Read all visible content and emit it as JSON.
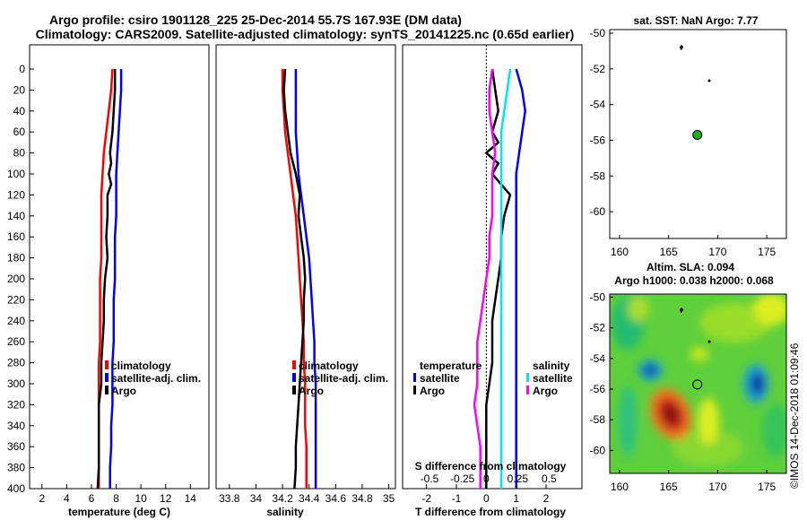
{
  "header": {
    "title_line1": "Argo profile: csiro 1901128_225 25-Dec-2014 55.7S 167.93E (DM data)",
    "title_line2": "Climatology: CARS2009. Satellite-adjusted climatology: synTS_20141225.nc (0.65d earlier)"
  },
  "watermark": "©IMOS 14-Dec-2018 01:09:46",
  "colors": {
    "climatology": "#ff0000",
    "satellite": "#0000ff",
    "argo": "#000000",
    "magenta": "#ff00ff",
    "cyan": "#00e5ee",
    "sst_dot": "#22aa22"
  },
  "chart_data": [
    {
      "type": "line",
      "id": "temperature",
      "xlabel": "temperature (deg C)",
      "xlim": [
        1,
        15.5
      ],
      "ylim": [
        400,
        0
      ],
      "xticks": [
        2,
        4,
        6,
        8,
        10,
        12,
        14
      ],
      "yticks": [
        0,
        20,
        40,
        60,
        80,
        100,
        120,
        140,
        160,
        180,
        200,
        220,
        240,
        260,
        280,
        300,
        320,
        340,
        360,
        380,
        400
      ],
      "series": [
        {
          "name": "climatology",
          "color": "#ff0000",
          "points": [
            [
              7.7,
              0
            ],
            [
              7.6,
              20
            ],
            [
              7.4,
              40
            ],
            [
              7.2,
              60
            ],
            [
              7.0,
              80
            ],
            [
              6.9,
              100
            ],
            [
              6.8,
              120
            ],
            [
              6.8,
              140
            ],
            [
              6.8,
              160
            ],
            [
              6.8,
              180
            ],
            [
              6.7,
              200
            ],
            [
              6.7,
              220
            ],
            [
              6.7,
              240
            ],
            [
              6.7,
              260
            ],
            [
              6.6,
              280
            ],
            [
              6.6,
              300
            ],
            [
              6.6,
              320
            ],
            [
              6.6,
              340
            ],
            [
              6.6,
              360
            ],
            [
              6.6,
              380
            ],
            [
              6.6,
              400
            ]
          ]
        },
        {
          "name": "satellite-adj. clim.",
          "color": "#0000ff",
          "points": [
            [
              8.4,
              0
            ],
            [
              8.4,
              20
            ],
            [
              8.3,
              40
            ],
            [
              8.2,
              60
            ],
            [
              8.1,
              80
            ],
            [
              8.0,
              100
            ],
            [
              8.0,
              120
            ],
            [
              8.0,
              140
            ],
            [
              7.9,
              160
            ],
            [
              7.9,
              180
            ],
            [
              7.9,
              200
            ],
            [
              7.8,
              220
            ],
            [
              7.8,
              240
            ],
            [
              7.8,
              260
            ],
            [
              7.7,
              280
            ],
            [
              7.7,
              300
            ],
            [
              7.7,
              320
            ],
            [
              7.6,
              340
            ],
            [
              7.6,
              360
            ],
            [
              7.5,
              380
            ],
            [
              7.5,
              400
            ]
          ]
        },
        {
          "name": "Argo",
          "color": "#000000",
          "points": [
            [
              7.9,
              0
            ],
            [
              7.9,
              20
            ],
            [
              7.8,
              40
            ],
            [
              7.7,
              60
            ],
            [
              7.5,
              80
            ],
            [
              7.6,
              90
            ],
            [
              7.4,
              100
            ],
            [
              7.6,
              110
            ],
            [
              7.3,
              120
            ],
            [
              7.3,
              140
            ],
            [
              7.2,
              160
            ],
            [
              7.3,
              180
            ],
            [
              7.1,
              200
            ],
            [
              7.0,
              220
            ],
            [
              7.0,
              240
            ],
            [
              6.9,
              260
            ],
            [
              6.8,
              280
            ],
            [
              6.8,
              300
            ],
            [
              6.6,
              320
            ],
            [
              6.6,
              340
            ],
            [
              6.6,
              360
            ],
            [
              6.6,
              380
            ],
            [
              6.5,
              400
            ]
          ]
        }
      ],
      "legend": {
        "entries": [
          "climatology",
          "satellite-adj. clim.",
          "Argo"
        ],
        "placement": "lower-right"
      }
    },
    {
      "type": "line",
      "id": "salinity",
      "xlabel": "salinity",
      "xlim": [
        33.7,
        35.05
      ],
      "ylim": [
        400,
        0
      ],
      "xticks": [
        33.8,
        34,
        34.2,
        34.4,
        34.6,
        34.8,
        35
      ],
      "series": [
        {
          "name": "climatology",
          "color": "#ff0000",
          "points": [
            [
              34.2,
              0
            ],
            [
              34.2,
              20
            ],
            [
              34.21,
              40
            ],
            [
              34.22,
              60
            ],
            [
              34.24,
              80
            ],
            [
              34.26,
              100
            ],
            [
              34.28,
              120
            ],
            [
              34.3,
              140
            ],
            [
              34.31,
              160
            ],
            [
              34.32,
              180
            ],
            [
              34.33,
              200
            ],
            [
              34.34,
              220
            ],
            [
              34.35,
              240
            ],
            [
              34.36,
              260
            ],
            [
              34.36,
              280
            ],
            [
              34.37,
              300
            ],
            [
              34.37,
              320
            ],
            [
              34.37,
              340
            ],
            [
              34.38,
              360
            ],
            [
              34.38,
              380
            ],
            [
              34.38,
              400
            ]
          ]
        },
        {
          "name": "satellite-adj. clim.",
          "color": "#0000ff",
          "points": [
            [
              34.3,
              0
            ],
            [
              34.3,
              20
            ],
            [
              34.3,
              40
            ],
            [
              34.3,
              60
            ],
            [
              34.31,
              80
            ],
            [
              34.32,
              100
            ],
            [
              34.34,
              120
            ],
            [
              34.36,
              140
            ],
            [
              34.38,
              160
            ],
            [
              34.4,
              180
            ],
            [
              34.41,
              200
            ],
            [
              34.42,
              220
            ],
            [
              34.43,
              240
            ],
            [
              34.44,
              260
            ],
            [
              34.44,
              280
            ],
            [
              34.45,
              300
            ],
            [
              34.45,
              320
            ],
            [
              34.45,
              340
            ],
            [
              34.45,
              360
            ],
            [
              34.45,
              380
            ],
            [
              34.45,
              400
            ]
          ]
        },
        {
          "name": "Argo",
          "color": "#000000",
          "points": [
            [
              34.22,
              0
            ],
            [
              34.21,
              20
            ],
            [
              34.22,
              40
            ],
            [
              34.24,
              60
            ],
            [
              34.26,
              80
            ],
            [
              34.3,
              100
            ],
            [
              34.33,
              120
            ],
            [
              34.32,
              140
            ],
            [
              34.34,
              160
            ],
            [
              34.36,
              180
            ],
            [
              34.37,
              200
            ],
            [
              34.36,
              220
            ],
            [
              34.36,
              240
            ],
            [
              34.35,
              260
            ],
            [
              34.34,
              280
            ],
            [
              34.33,
              300
            ],
            [
              34.32,
              320
            ],
            [
              34.31,
              340
            ],
            [
              34.3,
              360
            ],
            [
              34.3,
              380
            ],
            [
              34.29,
              400
            ]
          ]
        }
      ],
      "legend": {
        "entries": [
          "climatology",
          "satellite-adj. clim.",
          "Argo"
        ],
        "placement": "lower-right"
      }
    },
    {
      "type": "line",
      "id": "difference",
      "xlabel": "T difference from climatology",
      "xlabel_top": "S difference from climatology",
      "xlim": [
        -2.8,
        3.2
      ],
      "ylim": [
        400,
        0
      ],
      "xticks": [
        -2,
        -1,
        0,
        1,
        2
      ],
      "xticks_top": [
        {
          "label": "-0.5",
          "t": -1.9
        },
        {
          "label": "-0.25",
          "t": -0.8
        },
        {
          "label": "0",
          "t": 0.0
        },
        {
          "label": "0.25",
          "t": 1.05
        },
        {
          "label": "0.5",
          "t": 2.1
        }
      ],
      "series": [
        {
          "name": "temperature satellite",
          "color": "#0000ff",
          "points": [
            [
              1.0,
              0
            ],
            [
              1.2,
              20
            ],
            [
              1.3,
              40
            ],
            [
              1.2,
              60
            ],
            [
              1.1,
              80
            ],
            [
              1.0,
              100
            ],
            [
              1.0,
              120
            ],
            [
              1.0,
              140
            ],
            [
              1.0,
              160
            ],
            [
              1.0,
              180
            ],
            [
              1.0,
              200
            ],
            [
              1.0,
              220
            ],
            [
              1.0,
              240
            ],
            [
              1.0,
              260
            ],
            [
              1.0,
              280
            ],
            [
              1.0,
              300
            ],
            [
              1.0,
              320
            ],
            [
              1.0,
              340
            ],
            [
              1.0,
              360
            ],
            [
              1.0,
              380
            ],
            [
              1.0,
              400
            ]
          ]
        },
        {
          "name": "temperature Argo",
          "color": "#000000",
          "points": [
            [
              0.2,
              0
            ],
            [
              0.3,
              20
            ],
            [
              0.4,
              40
            ],
            [
              0.2,
              60
            ],
            [
              0.4,
              70
            ],
            [
              0.0,
              80
            ],
            [
              0.4,
              90
            ],
            [
              0.2,
              100
            ],
            [
              0.8,
              120
            ],
            [
              0.6,
              140
            ],
            [
              0.5,
              160
            ],
            [
              0.5,
              180
            ],
            [
              0.4,
              200
            ],
            [
              0.3,
              220
            ],
            [
              0.2,
              240
            ],
            [
              0.2,
              260
            ],
            [
              0.2,
              280
            ],
            [
              0.1,
              300
            ],
            [
              0.0,
              320
            ],
            [
              0.0,
              340
            ],
            [
              0.0,
              360
            ],
            [
              0.0,
              380
            ],
            [
              0.0,
              400
            ]
          ]
        },
        {
          "name": "salinity satellite",
          "color": "#00e5ee",
          "points": [
            [
              0.8,
              0
            ],
            [
              0.7,
              20
            ],
            [
              0.6,
              40
            ],
            [
              0.5,
              60
            ],
            [
              0.5,
              80
            ],
            [
              0.5,
              100
            ],
            [
              0.5,
              140
            ],
            [
              0.5,
              200
            ],
            [
              0.5,
              260
            ],
            [
              0.5,
              320
            ],
            [
              0.5,
              400
            ]
          ]
        },
        {
          "name": "salinity Argo",
          "color": "#ff00ff",
          "points": [
            [
              0.2,
              0
            ],
            [
              0.1,
              20
            ],
            [
              0.1,
              40
            ],
            [
              0.2,
              60
            ],
            [
              0.3,
              80
            ],
            [
              0.2,
              100
            ],
            [
              0.2,
              120
            ],
            [
              0.2,
              140
            ],
            [
              0.1,
              160
            ],
            [
              0.1,
              180
            ],
            [
              0.0,
              200
            ],
            [
              -0.1,
              220
            ],
            [
              -0.2,
              240
            ],
            [
              -0.3,
              260
            ],
            [
              -0.3,
              280
            ],
            [
              -0.3,
              300
            ],
            [
              -0.4,
              320
            ],
            [
              -0.3,
              340
            ],
            [
              -0.2,
              360
            ],
            [
              -0.2,
              380
            ],
            [
              -0.2,
              400
            ]
          ]
        }
      ],
      "legend": {
        "title_left": "temperature",
        "title_right": "salinity",
        "entries_left": [
          "satellite",
          "Argo"
        ],
        "entries_right": [
          "satellite",
          "Argo"
        ],
        "placement": "lower-center"
      }
    },
    {
      "type": "scatter",
      "id": "sst_map",
      "title": "sat. SST: NaN Argo: 7.77",
      "xlim": [
        159,
        177
      ],
      "ylim": [
        -61.5,
        -49.8
      ],
      "xticks": [
        160,
        165,
        170,
        175
      ],
      "yticks": [
        -50,
        -52,
        -54,
        -56,
        -58,
        -60
      ],
      "points": [
        {
          "lon": 167.93,
          "lat": -55.7,
          "label": "Argo float"
        }
      ]
    },
    {
      "type": "heatmap",
      "id": "sla_map",
      "title_line1": "Altim. SLA: 0.094",
      "title_line2": "Argo h1000: 0.038 h2000: 0.068",
      "xlim": [
        159,
        177
      ],
      "ylim": [
        -61.5,
        -49.8
      ],
      "xticks": [
        160,
        165,
        170,
        175
      ],
      "yticks": [
        -50,
        -52,
        -54,
        -56,
        -58,
        -60
      ],
      "points": [
        {
          "lon": 167.93,
          "lat": -55.7,
          "label": "Argo float"
        }
      ]
    }
  ]
}
